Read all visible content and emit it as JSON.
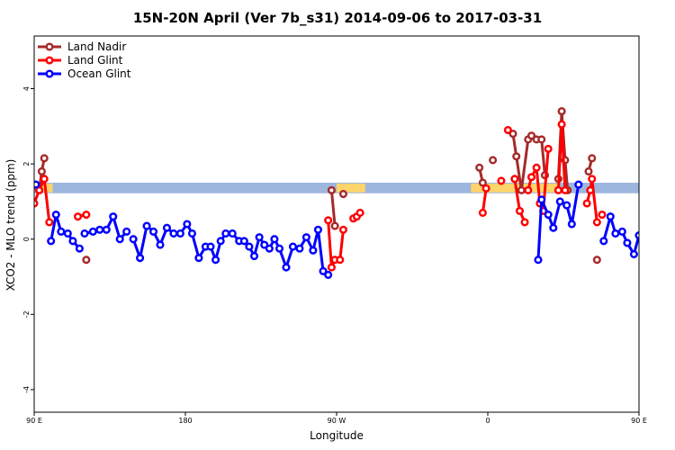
{
  "chart_data": {
    "type": "line",
    "title": "15N-20N April (Ver 7b_s31)   2014-09-06 to 2017-03-31",
    "xlabel": "Longitude",
    "ylabel": "XCO2 - MLO trend (ppm)",
    "xlim": [
      90,
      450
    ],
    "ylim": [
      -4.6,
      5.4
    ],
    "x_ticks": [
      {
        "value": 90,
        "label": "90 E"
      },
      {
        "value": 180,
        "label": "180"
      },
      {
        "value": 270,
        "label": "90 W"
      },
      {
        "value": 360,
        "label": "0"
      },
      {
        "value": 450,
        "label": "90 E"
      },
      {
        "value": 540,
        "label": "180"
      }
    ],
    "y_ticks": [
      {
        "value": -4,
        "label": "-4"
      },
      {
        "value": -2,
        "label": "-2"
      },
      {
        "value": 0,
        "label": "0"
      },
      {
        "value": 2,
        "label": "2"
      },
      {
        "value": 4,
        "label": "4"
      }
    ],
    "legend_position": "top-left",
    "band": {
      "y_low": 1.22,
      "y_high": 1.5,
      "color": "#9db6de"
    },
    "land_highlight_color": "#ffd46b",
    "land_highlights": [
      [
        92,
        101
      ],
      [
        270,
        287
      ],
      [
        350,
        402
      ],
      [
        450,
        470
      ]
    ],
    "series": [
      {
        "name": "Land Nadir",
        "color": "#a52a2a",
        "segments": [
          [
            [
              93,
              1.3
            ],
            [
              94.5,
              1.8
            ],
            [
              96,
              2.15
            ]
          ],
          [
            [
              121,
              -0.55
            ]
          ],
          [
            [
              267,
              1.3
            ],
            [
              269,
              0.35
            ]
          ],
          [
            [
              274,
              1.2
            ]
          ],
          [
            [
              355,
              1.9
            ],
            [
              357,
              1.5
            ]
          ],
          [
            [
              363,
              2.1
            ]
          ],
          [
            [
              375,
              2.8
            ],
            [
              377,
              2.2
            ],
            [
              380,
              1.3
            ],
            [
              384,
              2.65
            ],
            [
              386,
              2.75
            ],
            [
              389,
              2.65
            ],
            [
              392,
              2.65
            ],
            [
              394,
              1.7
            ]
          ],
          [
            [
              402,
              1.6
            ],
            [
              404,
              3.4
            ],
            [
              406,
              2.1
            ],
            [
              407.5,
              1.3
            ]
          ],
          [
            [
              420,
              1.8
            ],
            [
              422,
              2.15
            ]
          ],
          [
            [
              425,
              -0.55
            ]
          ]
        ]
      },
      {
        "name": "Land Glint",
        "color": "#ff0000",
        "segments": [
          [
            [
              90,
              0.95
            ],
            [
              93,
              1.3
            ],
            [
              96,
              1.6
            ],
            [
              99,
              0.45
            ]
          ],
          [
            [
              116,
              0.6
            ],
            [
              121,
              0.65
            ]
          ],
          [
            [
              265,
              0.5
            ],
            [
              267,
              -0.75
            ],
            [
              269,
              -0.55
            ],
            [
              272,
              -0.55
            ],
            [
              274,
              0.25
            ]
          ],
          [
            [
              280,
              0.55
            ],
            [
              282,
              0.6
            ],
            [
              284,
              0.7
            ]
          ],
          [
            [
              357,
              0.7
            ],
            [
              359,
              1.35
            ]
          ],
          [
            [
              368,
              1.55
            ]
          ],
          [
            [
              372,
              2.9
            ]
          ],
          [
            [
              376,
              1.6
            ],
            [
              379,
              0.75
            ],
            [
              382,
              0.45
            ]
          ],
          [
            [
              384,
              1.3
            ],
            [
              386,
              1.65
            ],
            [
              389,
              1.9
            ],
            [
              391,
              0.95
            ],
            [
              393,
              0.75
            ],
            [
              396,
              2.4
            ]
          ],
          [
            [
              402,
              1.3
            ],
            [
              404,
              3.05
            ],
            [
              406,
              1.3
            ]
          ],
          [
            [
              419,
              0.95
            ],
            [
              421,
              1.3
            ],
            [
              422,
              1.6
            ],
            [
              425,
              0.45
            ]
          ],
          [
            [
              428,
              0.65
            ]
          ]
        ]
      },
      {
        "name": "Ocean Glint",
        "color": "#0000ff",
        "segments": [
          [
            [
              91,
              1.45
            ]
          ],
          [
            [
              100,
              -0.05
            ],
            [
              103,
              0.65
            ],
            [
              106,
              0.2
            ],
            [
              110,
              0.15
            ],
            [
              113,
              -0.05
            ],
            [
              117,
              -0.25
            ]
          ],
          [
            [
              120,
              0.15
            ],
            [
              125,
              0.2
            ],
            [
              129,
              0.25
            ],
            [
              133,
              0.25
            ],
            [
              137,
              0.6
            ],
            [
              141,
              0
            ],
            [
              145,
              0.2
            ]
          ],
          [
            [
              149,
              0
            ],
            [
              153,
              -0.5
            ],
            [
              157,
              0.35
            ],
            [
              161,
              0.2
            ],
            [
              165,
              -0.15
            ],
            [
              169,
              0.3
            ],
            [
              173,
              0.15
            ],
            [
              177,
              0.15
            ],
            [
              181,
              0.4
            ],
            [
              184,
              0.15
            ],
            [
              188,
              -0.5
            ],
            [
              192,
              -0.2
            ],
            [
              195,
              -0.2
            ],
            [
              198,
              -0.55
            ],
            [
              201,
              -0.05
            ],
            [
              204,
              0.15
            ]
          ],
          [
            [
              208,
              0.15
            ],
            [
              212,
              -0.05
            ],
            [
              215,
              -0.05
            ],
            [
              218,
              -0.2
            ],
            [
              221,
              -0.45
            ],
            [
              224,
              0.05
            ],
            [
              227,
              -0.15
            ],
            [
              230,
              -0.25
            ],
            [
              233,
              0
            ],
            [
              236,
              -0.25
            ],
            [
              240,
              -0.75
            ],
            [
              244,
              -0.2
            ],
            [
              248,
              -0.25
            ],
            [
              252,
              0.05
            ],
            [
              256,
              -0.3
            ],
            [
              259,
              0.25
            ],
            [
              262,
              -0.85
            ],
            [
              265,
              -0.95
            ]
          ],
          [
            [
              390,
              -0.55
            ],
            [
              392,
              1.05
            ],
            [
              396,
              0.65
            ],
            [
              399,
              0.3
            ],
            [
              403,
              1.0
            ]
          ],
          [
            [
              407,
              0.9
            ],
            [
              410,
              0.4
            ],
            [
              414,
              1.45
            ]
          ],
          [
            [
              429,
              -0.05
            ],
            [
              433,
              0.6
            ],
            [
              436,
              0.15
            ],
            [
              440,
              0.2
            ],
            [
              443,
              -0.1
            ],
            [
              447,
              -0.4
            ],
            [
              450,
              0.1
            ],
            [
              455,
              0.1
            ],
            [
              459,
              0.25
            ],
            [
              463,
              0.25
            ],
            [
              467,
              0.55
            ],
            [
              470,
              0
            ],
            [
              474,
              0.2
            ],
            [
              478,
              0
            ]
          ]
        ]
      }
    ]
  }
}
